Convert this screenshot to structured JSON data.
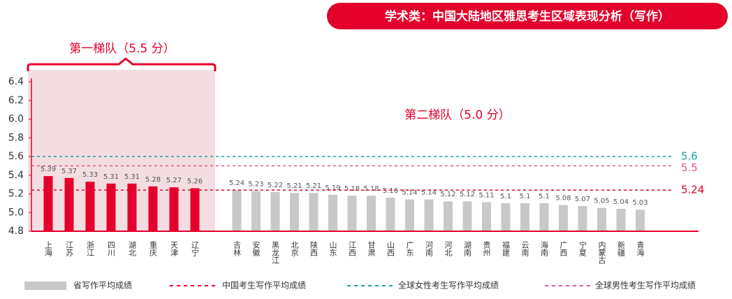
{
  "chart_data": {
    "type": "bar",
    "title": "学术类：中国大陆地区雅思考生区域表现分析（写作）",
    "groups": [
      {
        "label": "第一梯队（5.5 分）",
        "color": "#e4002b",
        "categories": [
          "上海",
          "江苏",
          "浙江",
          "四川",
          "湖北",
          "重庆",
          "天津",
          "辽宁"
        ],
        "values": [
          5.39,
          5.37,
          5.33,
          5.31,
          5.31,
          5.28,
          5.27,
          5.26
        ]
      },
      {
        "label": "第二梯队（5.0 分）",
        "color": "#c8c8c8",
        "categories": [
          "吉林",
          "安徽",
          "黑龙江",
          "北京",
          "陕西",
          "山东",
          "江西",
          "甘肃",
          "山西",
          "广东",
          "河南",
          "河北",
          "湖南",
          "贵州",
          "福建",
          "云南",
          "海南",
          "广西",
          "宁夏",
          "内蒙古",
          "新疆",
          "青海"
        ],
        "values": [
          5.24,
          5.23,
          5.22,
          5.21,
          5.21,
          5.19,
          5.18,
          5.18,
          5.16,
          5.14,
          5.14,
          5.12,
          5.12,
          5.11,
          5.1,
          5.1,
          5.1,
          5.08,
          5.07,
          5.05,
          5.04,
          5.03
        ]
      }
    ],
    "bar_legend_name": "省写作平均成绩",
    "reference_lines": [
      {
        "name": "中国考生写作平均成绩",
        "value": 5.24,
        "color": "#e4002b"
      },
      {
        "name": "全球女性考生写作平均成绩",
        "value": 5.6,
        "color": "#17a2a2"
      },
      {
        "name": "全球男性考生写作平均成绩",
        "value": 5.5,
        "color": "#d9579b"
      }
    ],
    "ylim": [
      4.8,
      6.4
    ],
    "yticks": [
      4.8,
      {
        "value": 5,
        "label": "5.0"
      },
      5.2,
      5.4,
      5.6,
      5.8,
      {
        "value": 6,
        "label": "6.0"
      },
      6.2,
      6.4
    ]
  }
}
